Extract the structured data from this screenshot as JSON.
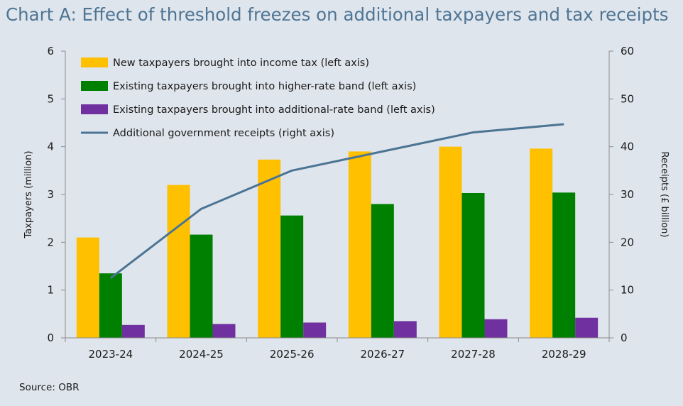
{
  "title": "Chart A: Effect of threshold freezes on additional taxpayers and tax receipts",
  "source": "Source: OBR",
  "chart_data": {
    "type": "bar",
    "title": "Chart A: Effect of threshold freezes on additional taxpayers and tax receipts",
    "categories": [
      "2023-24",
      "2024-25",
      "2025-26",
      "2026-27",
      "2027-28",
      "2028-29"
    ],
    "ylabel": "Taxpayers (million)",
    "ylim": [
      0,
      6
    ],
    "y_ticks": [
      "0",
      "1",
      "2",
      "3",
      "4",
      "5",
      "6"
    ],
    "y2label": "Receipts (£ billion)",
    "y2lim": [
      0,
      60
    ],
    "y2_ticks": [
      "0",
      "10",
      "20",
      "30",
      "40",
      "50",
      "60"
    ],
    "grid": false,
    "legend_position": "top-left",
    "series": [
      {
        "name": "New taxpayers brought into income tax (left axis)",
        "type": "bar",
        "axis": "left",
        "color": "#ffc000",
        "values": [
          2.1,
          3.2,
          3.73,
          3.9,
          4.0,
          3.96
        ]
      },
      {
        "name": "Existing taxpayers brought into higher-rate band (left axis)",
        "type": "bar",
        "axis": "left",
        "color": "#008000",
        "values": [
          1.35,
          2.16,
          2.56,
          2.8,
          3.03,
          3.04
        ]
      },
      {
        "name": "Existing taxpayers brought into additional-rate band (left axis)",
        "type": "bar",
        "axis": "left",
        "color": "#7030a0",
        "values": [
          0.27,
          0.29,
          0.32,
          0.35,
          0.39,
          0.42
        ]
      },
      {
        "name": "Additional government receipts (right axis)",
        "type": "line",
        "axis": "right",
        "color": "#4b7494",
        "values": [
          12.5,
          27.0,
          35.0,
          39.0,
          43.0,
          44.7
        ]
      }
    ]
  }
}
